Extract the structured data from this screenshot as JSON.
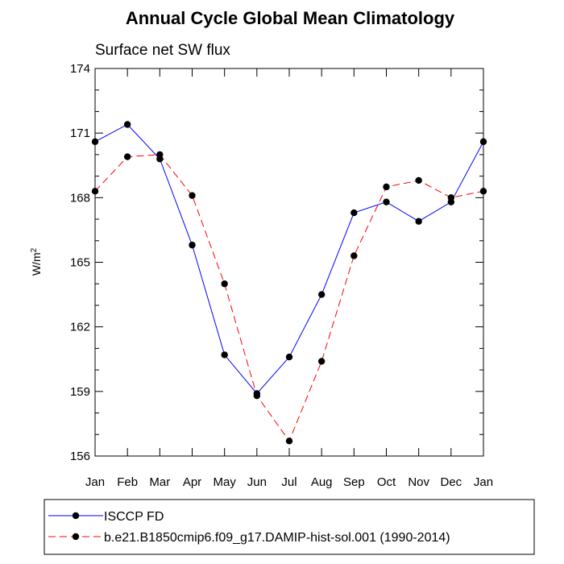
{
  "chart_data": {
    "type": "line",
    "title": "Annual Cycle Global Mean Climatology",
    "subtitle": "Surface net SW flux",
    "ylabel": "W/m",
    "ylabel_superscript": "2",
    "xlabel": "",
    "categories": [
      "Jan",
      "Feb",
      "Mar",
      "Apr",
      "May",
      "Jun",
      "Jul",
      "Aug",
      "Sep",
      "Oct",
      "Nov",
      "Dec",
      "Jan"
    ],
    "ylim": [
      156,
      174
    ],
    "yticks": [
      "156",
      "159",
      "162",
      "165",
      "168",
      "171",
      "174"
    ],
    "grid": false,
    "legend_position": "bottom",
    "series": [
      {
        "name": "ISCCP FD",
        "color": "#0000ff",
        "line_style": "solid",
        "values": [
          170.6,
          171.4,
          169.8,
          165.8,
          160.7,
          158.9,
          160.6,
          163.5,
          167.3,
          167.8,
          166.9,
          167.8,
          170.6
        ]
      },
      {
        "name": "b.e21.B1850cmip6.f09_g17.DAMIP-hist-sol.001 (1990-2014)",
        "color": "#ff0000",
        "line_style": "dashed",
        "values": [
          168.3,
          169.9,
          170.0,
          168.1,
          164.0,
          158.8,
          156.7,
          160.4,
          165.3,
          168.5,
          168.8,
          168.0,
          168.3
        ]
      }
    ]
  }
}
